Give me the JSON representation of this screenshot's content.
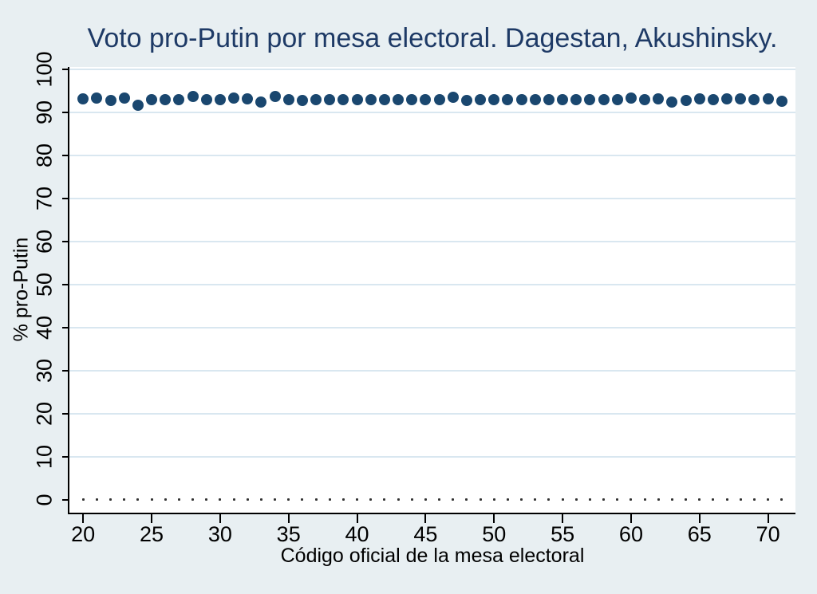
{
  "figure": {
    "background_color": "#e8eff2",
    "plot_background_color": "#ffffff",
    "gridline_color": "#d9e7f0",
    "axis_color": "#000000",
    "title_color": "#1e3a66"
  },
  "chart_data": {
    "type": "scatter",
    "title": "Voto pro-Putin por mesa electoral. Dagestan, Akushinsky.",
    "xlabel": "Código oficial de la mesa electoral",
    "ylabel": "% pro-Putin",
    "xlim": [
      19,
      72
    ],
    "ylim": [
      -3,
      100.5
    ],
    "x_ticks": [
      20,
      25,
      30,
      35,
      40,
      45,
      50,
      55,
      60,
      65,
      70
    ],
    "y_ticks": [
      0,
      10,
      20,
      30,
      40,
      50,
      60,
      70,
      80,
      90,
      100
    ],
    "grid": "horizontal gridlines at y ticks 10-100, light blue on white",
    "legend": "none",
    "x": [
      20,
      21,
      22,
      23,
      24,
      25,
      26,
      27,
      28,
      29,
      30,
      31,
      32,
      33,
      34,
      35,
      36,
      37,
      38,
      39,
      40,
      41,
      42,
      43,
      44,
      45,
      46,
      47,
      48,
      49,
      50,
      51,
      52,
      53,
      54,
      55,
      56,
      57,
      58,
      59,
      60,
      61,
      62,
      63,
      64,
      65,
      66,
      67,
      68,
      69,
      70,
      71
    ],
    "series": [
      {
        "name": "% pro-Putin",
        "marker": "filled-circle-large",
        "color": "#1a476f",
        "values": [
          93.1,
          93.3,
          92.7,
          93.3,
          91.6,
          92.9,
          92.9,
          93.0,
          93.7,
          93.0,
          93.0,
          93.2,
          93.1,
          92.4,
          93.6,
          92.9,
          92.8,
          92.9,
          93.0,
          92.9,
          92.9,
          93.0,
          92.9,
          92.9,
          93.0,
          92.9,
          93.0,
          93.4,
          92.7,
          93.0,
          92.9,
          92.9,
          93.0,
          92.9,
          92.9,
          93.0,
          92.9,
          92.9,
          93.0,
          92.9,
          93.3,
          92.9,
          93.1,
          92.3,
          92.8,
          93.1,
          92.9,
          93.1,
          93.1,
          92.9,
          93.1,
          92.5
        ]
      },
      {
        "name": "unlabeled-small-dots-at-zero",
        "marker": "tiny-dot",
        "color": "#333333",
        "constant_value": 0
      }
    ]
  }
}
